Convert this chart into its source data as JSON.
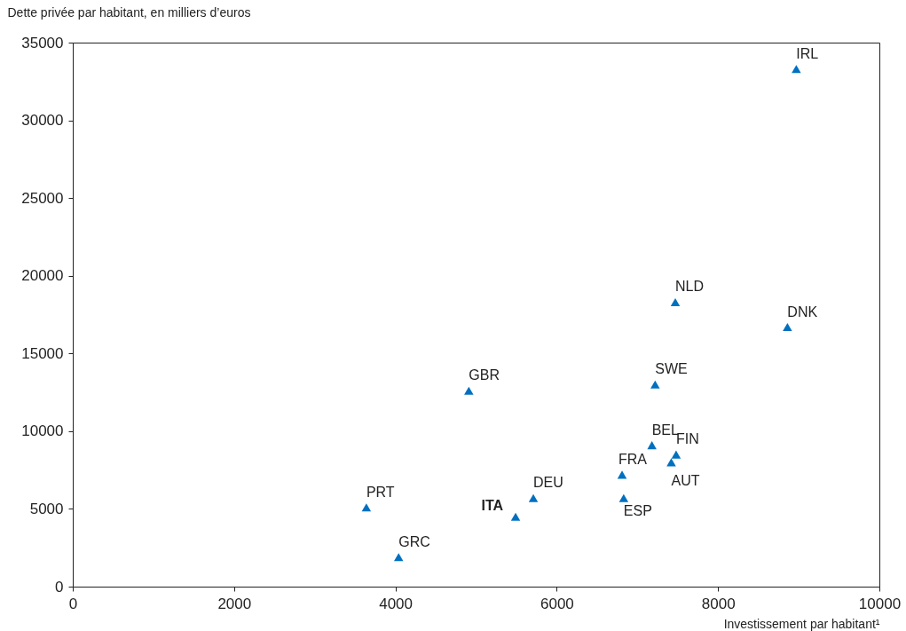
{
  "chart_data": {
    "type": "scatter",
    "xlabel": "Investissement par habitant¹",
    "ylabel": "Dette privée par habitant, en milliers d’euros",
    "x": [
      8970,
      7470,
      8860,
      7220,
      4910,
      7180,
      7480,
      7420,
      6810,
      6830,
      5710,
      5490,
      3640,
      4040
    ],
    "series": [
      {
        "color": "#0070c0",
        "values": [
          33300,
          18300,
          16700,
          13000,
          12600,
          9100,
          8500,
          8000,
          7200,
          5700,
          5700,
          4500,
          5100,
          1900
        ]
      }
    ],
    "annotations": [
      {
        "text": "IRL",
        "x": 8970,
        "y": 33300
      },
      {
        "text": "NLD",
        "x": 7470,
        "y": 18300
      },
      {
        "text": "DNK",
        "x": 8860,
        "y": 16700
      },
      {
        "text": "SWE",
        "x": 7220,
        "y": 13000
      },
      {
        "text": "GBR",
        "x": 4910,
        "y": 12600
      },
      {
        "text": "BEL",
        "x": 7180,
        "y": 9100
      },
      {
        "text": "FIN",
        "x": 7480,
        "y": 8500
      },
      {
        "text": "AUT",
        "x": 7420,
        "y": 8000
      },
      {
        "text": "FRA",
        "x": 6810,
        "y": 7200
      },
      {
        "text": "ESP",
        "x": 6830,
        "y": 5700
      },
      {
        "text": "DEU",
        "x": 5710,
        "y": 5700
      },
      {
        "text": "ITA",
        "x": 5490,
        "y": 4500
      },
      {
        "text": "PRT",
        "x": 3640,
        "y": 5100
      },
      {
        "text": "GRC",
        "x": 4040,
        "y": 1900
      }
    ],
    "xlim": [
      0,
      10000
    ],
    "xticks": [
      0,
      2000,
      4000,
      6000,
      8000,
      10000
    ],
    "ylim": [
      0,
      35000
    ],
    "yticks": [
      0,
      5000,
      10000,
      15000,
      20000,
      25000,
      30000,
      35000
    ],
    "marker": "triangle",
    "grid": false
  }
}
